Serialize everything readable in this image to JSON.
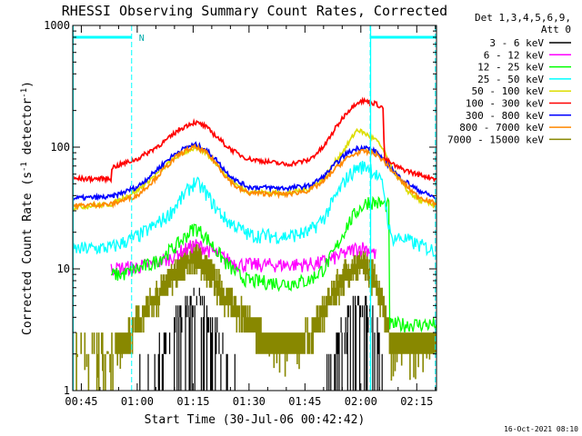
{
  "chart_data": {
    "type": "line",
    "title": "RHESSI Observing Summary Count Rates, Corrected",
    "xlabel": "Start Time (30-Jul-06 00:42:42)",
    "ylabel_main": "Corrected Count Rate (s",
    "ylabel_sup1": "-1",
    "ylabel_mid": " detector",
    "ylabel_sup2": "-1",
    "ylabel_end": ")",
    "yscale": "log",
    "ylim": [
      1,
      1000
    ],
    "xlim_minutes": [
      42.7,
      140.3
    ],
    "x_ticks": [
      {
        "label": "00:45",
        "minute": 45
      },
      {
        "label": "01:00",
        "minute": 60
      },
      {
        "label": "01:15",
        "minute": 75
      },
      {
        "label": "01:30",
        "minute": 90
      },
      {
        "label": "01:45",
        "minute": 105
      },
      {
        "label": "02:00",
        "minute": 120
      },
      {
        "label": "02:15",
        "minute": 135
      }
    ],
    "y_ticks": [
      {
        "label": "1",
        "value": 1
      },
      {
        "label": "10",
        "value": 10
      },
      {
        "label": "100",
        "value": 100
      },
      {
        "label": "1000",
        "value": 1000
      }
    ],
    "legend_header": [
      "Det 1,3,4,5,6,9,",
      "Att 0"
    ],
    "legend_position": "top-right",
    "series": [
      {
        "name": "3 - 6 keV",
        "color": "#000000",
        "kind": "black",
        "x": [
          42.7,
          58,
          60,
          63,
          66,
          70,
          73,
          75,
          78,
          81,
          84,
          87,
          90,
          108,
          111,
          114,
          117,
          119,
          121,
          123,
          125,
          127,
          140.3
        ],
        "y": [
          1,
          1,
          1.2,
          1.6,
          2.3,
          3.6,
          5,
          5.8,
          5,
          3.6,
          2.3,
          1.5,
          1,
          1,
          1.6,
          2.8,
          4.5,
          5.8,
          5.8,
          4.5,
          3,
          1.2,
          1
        ]
      },
      {
        "name": "6 - 12 keV",
        "color": "#ff00ff",
        "kind": "noisy",
        "x": [
          53,
          60,
          64,
          68,
          71,
          74,
          75.5,
          78,
          81,
          84,
          87,
          90,
          100,
          108,
          112,
          116,
          119,
          121,
          123,
          124
        ],
        "y": [
          10,
          10.4,
          11,
          12,
          13.6,
          15,
          15.8,
          15,
          13.5,
          12,
          11,
          10.8,
          10.8,
          11,
          12,
          13.5,
          15,
          15,
          14,
          13
        ]
      },
      {
        "name": "12 - 25 keV",
        "color": "#00ff00",
        "kind": "noisy",
        "x": [
          53,
          56,
          60,
          64,
          68,
          71,
          74,
          75.5,
          78,
          81,
          84,
          87,
          90,
          100,
          106,
          110,
          113,
          116,
          119,
          122,
          124,
          126,
          127.5,
          127.6,
          140.3
        ],
        "y": [
          9,
          9,
          10,
          11,
          13.5,
          16,
          20,
          22,
          19,
          14.5,
          11,
          9,
          8,
          7.6,
          8,
          10,
          14,
          22,
          30,
          36,
          35,
          34,
          33,
          3.5,
          3.5
        ]
      },
      {
        "name": "25 - 50 keV",
        "color": "#00ffff",
        "kind": "noisy",
        "x": [
          42.7,
          53,
          60,
          64,
          68,
          71,
          74,
          75.5,
          78,
          81,
          84,
          87,
          90,
          100,
          106,
          110,
          113,
          116,
          119,
          122,
          124,
          126,
          128,
          131,
          135,
          140.3
        ],
        "y": [
          14.5,
          15,
          18.5,
          22,
          27,
          35,
          46,
          52,
          44,
          32,
          25,
          22,
          19,
          18.5,
          20,
          26,
          38,
          55,
          68,
          70,
          60,
          48,
          18,
          18,
          16,
          14
        ]
      },
      {
        "name": "50 - 100 keV",
        "color": "#dddd00",
        "kind": "smooth",
        "x": [
          42.7,
          53,
          60,
          64,
          68,
          71,
          74,
          75.5,
          78,
          81,
          84,
          87,
          90,
          100,
          106,
          110,
          113,
          116,
          119,
          121,
          124,
          126,
          128,
          132,
          136,
          140.3
        ],
        "y": [
          32,
          34,
          44,
          56,
          72,
          85,
          95,
          98,
          92,
          75,
          58,
          48,
          43,
          42,
          45,
          55,
          75,
          100,
          140,
          130,
          115,
          95,
          70,
          45,
          36,
          33
        ]
      },
      {
        "name": "100 - 300 keV",
        "color": "#ff0000",
        "kind": "smooth",
        "x": [
          42.7,
          53,
          53.2,
          60,
          64,
          68,
          71,
          74,
          75.5,
          78,
          81,
          84,
          87,
          90,
          100,
          106,
          110,
          113,
          116,
          119,
          121,
          124,
          126,
          126.3,
          130,
          135,
          140.3
        ],
        "y": [
          55,
          55,
          68,
          80,
          95,
          115,
          138,
          155,
          160,
          150,
          125,
          102,
          88,
          80,
          72,
          78,
          100,
          140,
          190,
          235,
          240,
          228,
          210,
          80,
          68,
          60,
          55
        ]
      },
      {
        "name": "300 - 800 keV",
        "color": "#0000ff",
        "kind": "smooth",
        "x": [
          42.7,
          53,
          60,
          64,
          68,
          71,
          74,
          75.5,
          78,
          81,
          84,
          87,
          90,
          100,
          106,
          110,
          113,
          116,
          119,
          121,
          124,
          126,
          130,
          135,
          140.3
        ],
        "y": [
          38,
          39,
          47,
          60,
          78,
          92,
          102,
          105,
          98,
          80,
          62,
          52,
          47,
          46,
          48,
          57,
          72,
          88,
          98,
          100,
          92,
          80,
          58,
          45,
          38
        ]
      },
      {
        "name": "800 - 7000 keV",
        "color": "#ff8800",
        "kind": "smooth",
        "x": [
          42.7,
          53,
          60,
          64,
          68,
          71,
          74,
          75.5,
          78,
          81,
          84,
          87,
          90,
          100,
          106,
          110,
          113,
          116,
          119,
          121,
          124,
          126,
          130,
          135,
          140.3
        ],
        "y": [
          33,
          34,
          40,
          52,
          70,
          86,
          97,
          100,
          93,
          75,
          56,
          46,
          42,
          41,
          44,
          52,
          66,
          80,
          90,
          92,
          88,
          78,
          56,
          40,
          34
        ]
      },
      {
        "name": "7000 - 15000 keV",
        "color": "#888800",
        "kind": "step",
        "x": [
          42.7,
          53,
          58,
          61,
          64,
          67,
          70,
          73,
          75,
          77,
          80,
          83,
          86,
          89,
          92,
          96,
          100,
          103,
          106,
          109,
          112,
          115,
          118,
          120,
          122,
          124,
          126,
          128,
          140.3
        ],
        "y": [
          2,
          2,
          3,
          4,
          5.5,
          7,
          9,
          11.5,
          13,
          12,
          9,
          6.5,
          5,
          4,
          3,
          2.5,
          2.5,
          2.5,
          3,
          4,
          6,
          8.5,
          10.5,
          11,
          10,
          8,
          5.5,
          2.5,
          2.5
        ]
      }
    ],
    "annotations": {
      "saa_label": "N",
      "saa_intervals": [
        {
          "start": 42.7,
          "end": 58.5
        },
        {
          "start": 122.5,
          "end": 140.3
        }
      ],
      "vertical_dashed_lines": [
        58.5,
        122.5,
        140.0
      ],
      "vertical_solid_lines": [
        42.7,
        122.5
      ]
    }
  },
  "footer_timestamp": "16-Oct-2021 08:10"
}
